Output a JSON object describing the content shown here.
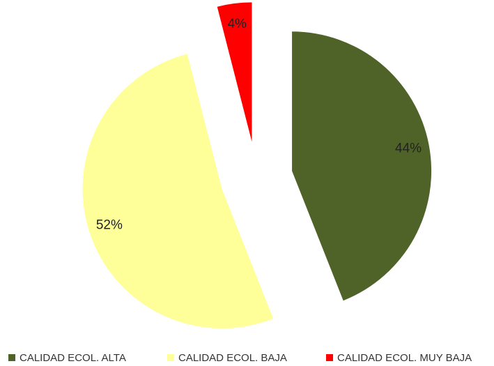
{
  "chart_data": {
    "type": "pie",
    "categories": [
      "CALIDAD ECOL. ALTA",
      "CALIDAD ECOL. BAJA",
      "CALIDAD ECOL. MUY BAJA"
    ],
    "values": [
      44,
      52,
      4
    ],
    "value_labels": [
      "44%",
      "52%",
      "4%"
    ],
    "colors": [
      "#4f6228",
      "#ffff99",
      "#ff0000"
    ],
    "legend": "bottom"
  }
}
